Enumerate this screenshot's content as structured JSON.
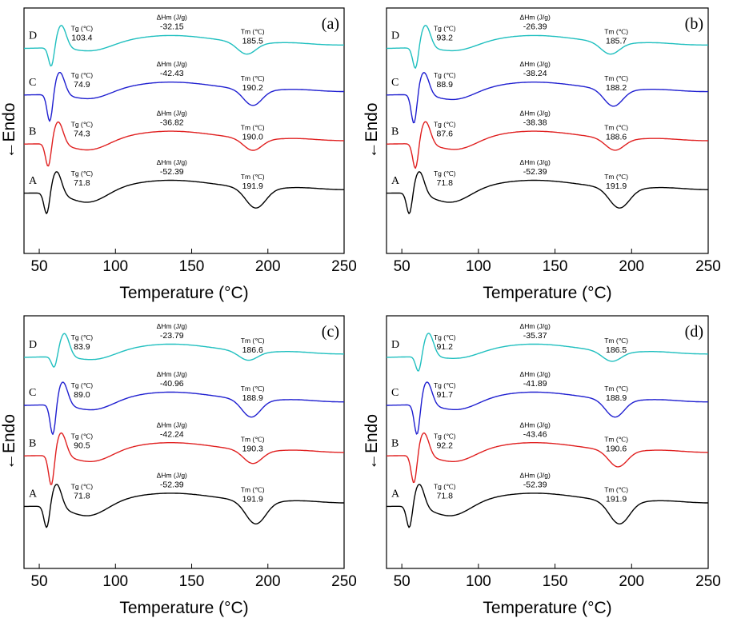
{
  "chart_data": [
    {
      "type": "line",
      "panel_label": "(a)",
      "xlabel": "Temperature (°C)",
      "ylabel": "←Endo",
      "xlim": [
        40,
        250
      ],
      "xticks": [
        50,
        100,
        150,
        200,
        250
      ],
      "series": [
        {
          "name": "D",
          "color": "#1fbfbf",
          "tg": "103.4",
          "dhm": "-32.15",
          "tm": "185.5"
        },
        {
          "name": "C",
          "color": "#1f1fd0",
          "tg": "74.9",
          "dhm": "-42.43",
          "tm": "190.2"
        },
        {
          "name": "B",
          "color": "#e02020",
          "tg": "74.3",
          "dhm": "-36.82",
          "tm": "190.0"
        },
        {
          "name": "A",
          "color": "#000000",
          "tg": "71.8",
          "dhm": "-52.39",
          "tm": "191.9"
        }
      ]
    },
    {
      "type": "line",
      "panel_label": "(b)",
      "xlabel": "Temperature (°C)",
      "ylabel": "←Endo",
      "xlim": [
        40,
        250
      ],
      "xticks": [
        50,
        100,
        150,
        200,
        250
      ],
      "series": [
        {
          "name": "D",
          "color": "#1fbfbf",
          "tg": "93.2",
          "dhm": "-26.39",
          "tm": "185.7"
        },
        {
          "name": "C",
          "color": "#1f1fd0",
          "tg": "88.9",
          "dhm": "-38.24",
          "tm": "188.2"
        },
        {
          "name": "B",
          "color": "#e02020",
          "tg": "87.6",
          "dhm": "-38.38",
          "tm": "188.6"
        },
        {
          "name": "A",
          "color": "#000000",
          "tg": "71.8",
          "dhm": "-52.39",
          "tm": "191.9"
        }
      ]
    },
    {
      "type": "line",
      "panel_label": "(c)",
      "xlabel": "Temperature (°C)",
      "ylabel": "←Endo",
      "xlim": [
        40,
        250
      ],
      "xticks": [
        50,
        100,
        150,
        200,
        250
      ],
      "series": [
        {
          "name": "D",
          "color": "#1fbfbf",
          "tg": "83.9",
          "dhm": "-23.79",
          "tm": "186.6"
        },
        {
          "name": "C",
          "color": "#1f1fd0",
          "tg": "89.0",
          "dhm": "-40.96",
          "tm": "188.9"
        },
        {
          "name": "B",
          "color": "#e02020",
          "tg": "90.5",
          "dhm": "-42.24",
          "tm": "190.3"
        },
        {
          "name": "A",
          "color": "#000000",
          "tg": "71.8",
          "dhm": "-52.39",
          "tm": "191.9"
        }
      ]
    },
    {
      "type": "line",
      "panel_label": "(d)",
      "xlabel": "Temperature (°C)",
      "ylabel": "←Endo",
      "xlim": [
        40,
        250
      ],
      "xticks": [
        50,
        100,
        150,
        200,
        250
      ],
      "series": [
        {
          "name": "D",
          "color": "#1fbfbf",
          "tg": "91.2",
          "dhm": "-35.37",
          "tm": "186.5"
        },
        {
          "name": "C",
          "color": "#1f1fd0",
          "tg": "91.7",
          "dhm": "-41.89",
          "tm": "188.9"
        },
        {
          "name": "B",
          "color": "#e02020",
          "tg": "92.2",
          "dhm": "-43.46",
          "tm": "190.6"
        },
        {
          "name": "A",
          "color": "#000000",
          "tg": "71.8",
          "dhm": "-52.39",
          "tm": "191.9"
        }
      ]
    }
  ],
  "annotation_labels": {
    "tg": "Tg (℃)",
    "dhm": "ΔHm (J/g)",
    "tm": "Tm (℃)"
  }
}
